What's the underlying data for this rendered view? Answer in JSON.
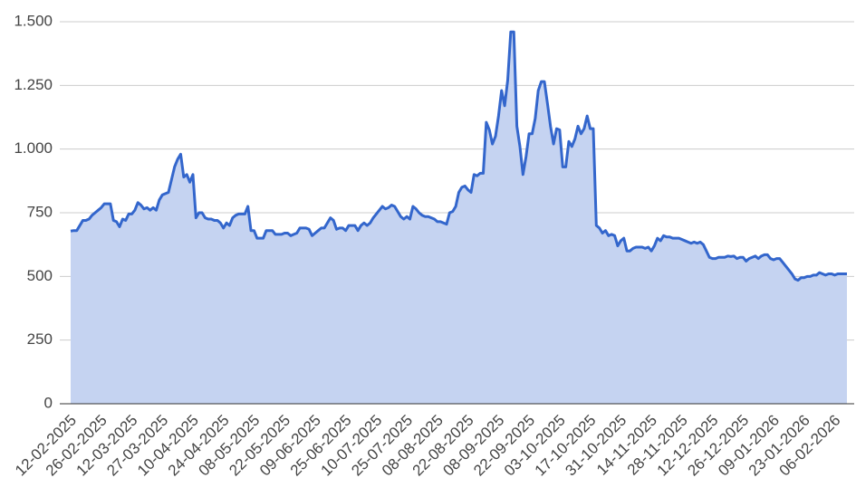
{
  "chart_data": {
    "type": "area",
    "color": "#3366cc",
    "fill": "#c5d3f1",
    "grid": true,
    "ylim": [
      0,
      1500
    ],
    "yticks": [
      0,
      250,
      500,
      750,
      {
        "value": 1000,
        "label": "1.000"
      },
      {
        "value": 1250,
        "label": "1.250"
      },
      {
        "value": 1500,
        "label": "1.500"
      }
    ],
    "categories": [
      "12-02-2025",
      null,
      null,
      null,
      null,
      null,
      null,
      null,
      null,
      null,
      "26-02-2025",
      null,
      null,
      null,
      null,
      null,
      null,
      null,
      null,
      null,
      "12-03-2025",
      null,
      null,
      null,
      null,
      null,
      null,
      null,
      null,
      null,
      "27-03-2025",
      null,
      null,
      null,
      null,
      null,
      null,
      null,
      null,
      null,
      "10-04-2025",
      null,
      null,
      null,
      null,
      null,
      null,
      null,
      null,
      null,
      "24-04-2025",
      null,
      null,
      null,
      null,
      null,
      null,
      null,
      null,
      null,
      "08-05-2025",
      null,
      null,
      null,
      null,
      null,
      null,
      null,
      null,
      null,
      "22-05-2025",
      null,
      null,
      null,
      null,
      null,
      null,
      null,
      null,
      null,
      "09-06-2025",
      null,
      null,
      null,
      null,
      null,
      null,
      null,
      null,
      null,
      "25-06-2025",
      null,
      null,
      null,
      null,
      null,
      null,
      null,
      null,
      null,
      "10-07-2025",
      null,
      null,
      null,
      null,
      null,
      null,
      null,
      null,
      null,
      "25-07-2025",
      null,
      null,
      null,
      null,
      null,
      null,
      null,
      null,
      null,
      "08-08-2025",
      null,
      null,
      null,
      null,
      null,
      null,
      null,
      null,
      null,
      "22-08-2025",
      null,
      null,
      null,
      null,
      null,
      null,
      null,
      null,
      null,
      "08-09-2025",
      null,
      null,
      null,
      null,
      null,
      null,
      null,
      null,
      null,
      "22-09-2025",
      null,
      null,
      null,
      null,
      null,
      null,
      null,
      null,
      null,
      "03-10-2025",
      null,
      null,
      null,
      null,
      null,
      null,
      null,
      null,
      null,
      "17-10-2025",
      null,
      null,
      null,
      null,
      null,
      null,
      null,
      null,
      null,
      "31-10-2025",
      null,
      null,
      null,
      null,
      null,
      null,
      null,
      null,
      null,
      "14-11-2025",
      null,
      null,
      null,
      null,
      null,
      null,
      null,
      null,
      null,
      "28-11-2025",
      null,
      null,
      null,
      null,
      null,
      null,
      null,
      null,
      null,
      "12-12-2025",
      null,
      null,
      null,
      null,
      null,
      null,
      null,
      null,
      null,
      "26-12-2025",
      null,
      null,
      null,
      null,
      null,
      null,
      null,
      null,
      null,
      "09-01-2026",
      null,
      null,
      null,
      null,
      null,
      null,
      null,
      null,
      null,
      "23-01-2026",
      null,
      null,
      null,
      null,
      null,
      null,
      null,
      null,
      null,
      "06-02-2026",
      null,
      null,
      null,
      null
    ],
    "values": [
      678,
      680,
      680,
      700,
      720,
      720,
      725,
      740,
      750,
      760,
      770,
      785,
      785,
      785,
      720,
      715,
      695,
      725,
      720,
      745,
      745,
      760,
      790,
      780,
      765,
      770,
      760,
      770,
      760,
      800,
      820,
      825,
      830,
      880,
      930,
      960,
      980,
      890,
      900,
      870,
      900,
      730,
      750,
      750,
      730,
      725,
      725,
      720,
      720,
      710,
      690,
      710,
      700,
      730,
      740,
      745,
      745,
      745,
      775,
      680,
      680,
      650,
      650,
      650,
      680,
      680,
      680,
      665,
      665,
      665,
      670,
      670,
      660,
      665,
      670,
      690,
      690,
      690,
      685,
      660,
      670,
      680,
      690,
      690,
      710,
      730,
      720,
      685,
      690,
      690,
      680,
      700,
      700,
      700,
      680,
      700,
      710,
      700,
      710,
      730,
      745,
      760,
      775,
      765,
      770,
      780,
      775,
      755,
      735,
      725,
      735,
      725,
      775,
      765,
      750,
      740,
      735,
      735,
      730,
      725,
      715,
      715,
      710,
      705,
      750,
      755,
      775,
      830,
      850,
      855,
      840,
      830,
      900,
      895,
      905,
      905,
      1105,
      1075,
      1020,
      1050,
      1130,
      1230,
      1170,
      1270,
      1460,
      1460,
      1090,
      1010,
      900,
      970,
      1060,
      1060,
      1120,
      1230,
      1265,
      1265,
      1180,
      1090,
      1020,
      1080,
      1075,
      930,
      930,
      1030,
      1010,
      1040,
      1090,
      1060,
      1080,
      1130,
      1080,
      1080,
      700,
      690,
      670,
      680,
      660,
      665,
      660,
      620,
      640,
      650,
      600,
      600,
      610,
      615,
      615,
      615,
      610,
      615,
      600,
      620,
      650,
      640,
      660,
      655,
      655,
      650,
      650,
      650,
      645,
      640,
      635,
      630,
      635,
      630,
      635,
      625,
      600,
      575,
      570,
      570,
      575,
      575,
      575,
      580,
      578,
      580,
      570,
      575,
      575,
      560,
      570,
      575,
      580,
      570,
      580,
      585,
      585,
      570,
      565,
      570,
      570,
      555,
      540,
      525,
      510,
      490,
      485,
      495,
      495,
      500,
      500,
      505,
      505,
      515,
      510,
      505,
      510,
      510,
      505,
      510,
      510,
      510,
      510
    ]
  }
}
